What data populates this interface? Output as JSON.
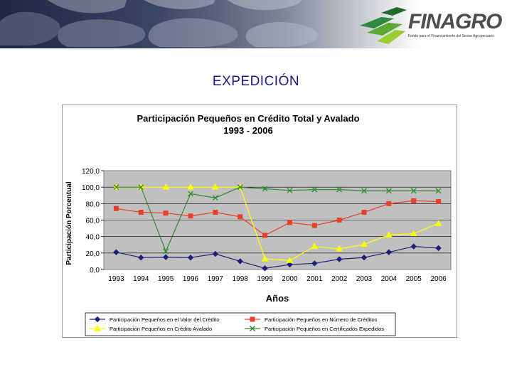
{
  "page": {
    "title": "EXPEDICIÓN"
  },
  "logo": {
    "name": "FINAGRO",
    "subtitle": "Fondo para el Financiamiento del Sector Agropecuario"
  },
  "colors": {
    "title": "#1a1a8c",
    "series_valor": "#1f1f7a",
    "series_numero": "#e8402a",
    "series_avalado": "#ffff00",
    "series_expedidos": "#2e8b2e",
    "plot_bg": "#c0c0c0"
  },
  "chart_data": {
    "type": "line",
    "title": "Participación Pequeños en Crédito Total y Avalado",
    "subtitle": "1993 - 2006",
    "xlabel": "Años",
    "ylabel": "Participación Porcentual",
    "ylim": [
      0,
      120
    ],
    "y_ticks": [
      "0,0",
      "20,0",
      "40,0",
      "60,0",
      "80,0",
      "100,0",
      "120,0"
    ],
    "y_tick_values": [
      0,
      20,
      40,
      60,
      80,
      100,
      120
    ],
    "categories": [
      "1993",
      "1994",
      "1995",
      "1996",
      "1997",
      "1998",
      "1999",
      "2000",
      "2001",
      "2002",
      "2003",
      "2004",
      "2005",
      "2006"
    ],
    "grid": true,
    "legend_position": "bottom",
    "series": [
      {
        "name": "Participación Pequeños en el Valor del Crédito",
        "marker": "diamond",
        "color": "#1f1f7a",
        "values": [
          21,
          14.5,
          15,
          14.5,
          19,
          10,
          1.5,
          6,
          7.5,
          12.5,
          14.5,
          21,
          28,
          26
        ]
      },
      {
        "name": "Participación Pequeños en Número de Créditos",
        "marker": "square",
        "color": "#e8402a",
        "values": [
          74,
          69.5,
          68.5,
          65,
          69.5,
          64,
          41.5,
          57,
          53.5,
          60,
          69.5,
          80,
          83.5,
          82.5
        ]
      },
      {
        "name": "Participación Pequeños en Crédito Avalado",
        "marker": "triangle",
        "color": "#ffff00",
        "values": [
          100,
          100,
          100,
          100,
          100,
          100,
          13,
          11,
          28,
          25,
          30.5,
          42,
          43.5,
          56
        ]
      },
      {
        "name": "Participación Pequeños en Certificados Expedidos",
        "marker": "x",
        "color": "#2e8b2e",
        "values": [
          100,
          100,
          22,
          92,
          87,
          100,
          98,
          96,
          97,
          97,
          95.5,
          95.5,
          95.5,
          95.5
        ]
      }
    ]
  }
}
